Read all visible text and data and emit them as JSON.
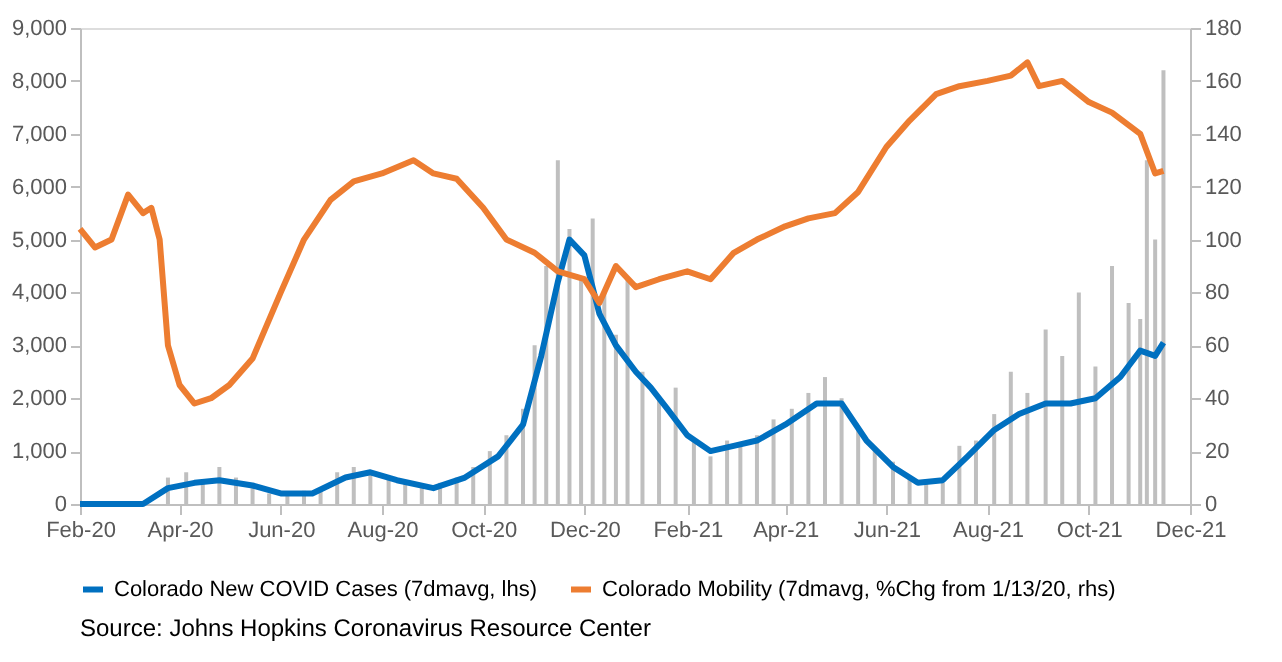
{
  "chart_data": {
    "type": "line",
    "xlim": [
      "2020-02-01",
      "2021-12-01"
    ],
    "xticks": [
      {
        "value": "2020-02-01",
        "label": "Feb-20"
      },
      {
        "value": "2020-04-01",
        "label": "Apr-20"
      },
      {
        "value": "2020-06-01",
        "label": "Jun-20"
      },
      {
        "value": "2020-08-01",
        "label": "Aug-20"
      },
      {
        "value": "2020-10-01",
        "label": "Oct-20"
      },
      {
        "value": "2020-12-01",
        "label": "Dec-20"
      },
      {
        "value": "2021-02-01",
        "label": "Feb-21"
      },
      {
        "value": "2021-04-01",
        "label": "Apr-21"
      },
      {
        "value": "2021-06-01",
        "label": "Jun-21"
      },
      {
        "value": "2021-08-01",
        "label": "Aug-21"
      },
      {
        "value": "2021-10-01",
        "label": "Oct-21"
      },
      {
        "value": "2021-12-01",
        "label": "Dec-21"
      }
    ],
    "ylim": [
      0,
      9000
    ],
    "yticks": [
      0,
      {
        "value": 1000,
        "label": "1,000"
      },
      {
        "value": 2000,
        "label": "2,000"
      },
      {
        "value": 3000,
        "label": "3,000"
      },
      {
        "value": 4000,
        "label": "4,000"
      },
      {
        "value": 5000,
        "label": "5,000"
      },
      {
        "value": 6000,
        "label": "6,000"
      },
      {
        "value": 7000,
        "label": "7,000"
      },
      {
        "value": 8000,
        "label": "8,000"
      },
      {
        "value": 9000,
        "label": "9,000"
      }
    ],
    "y2lim": [
      0,
      180
    ],
    "y2ticks": [
      0,
      20,
      40,
      60,
      80,
      100,
      120,
      140,
      160,
      180
    ],
    "grid": false,
    "legend": "bottom",
    "annotations": [
      "Source: Johns Hopkins Coronavirus Resource Center"
    ],
    "series": [
      {
        "type": "bar",
        "color": "#bfbfbf",
        "x": [
          "2020-03-25",
          "2020-04-05",
          "2020-04-15",
          "2020-04-25",
          "2020-05-05",
          "2020-05-15",
          "2020-05-25",
          "2020-06-05",
          "2020-06-15",
          "2020-06-25",
          "2020-07-05",
          "2020-07-15",
          "2020-07-25",
          "2020-08-05",
          "2020-08-15",
          "2020-08-25",
          "2020-09-05",
          "2020-09-15",
          "2020-09-25",
          "2020-10-05",
          "2020-10-15",
          "2020-10-25",
          "2020-11-01",
          "2020-11-08",
          "2020-11-15",
          "2020-11-22",
          "2020-11-29",
          "2020-12-06",
          "2020-12-13",
          "2020-12-20",
          "2020-12-27",
          "2021-01-05",
          "2021-01-15",
          "2021-01-25",
          "2021-02-05",
          "2021-02-15",
          "2021-02-25",
          "2021-03-05",
          "2021-03-15",
          "2021-03-25",
          "2021-04-05",
          "2021-04-15",
          "2021-04-25",
          "2021-05-05",
          "2021-05-15",
          "2021-05-25",
          "2021-06-05",
          "2021-06-15",
          "2021-06-25",
          "2021-07-05",
          "2021-07-15",
          "2021-07-25",
          "2021-08-05",
          "2021-08-15",
          "2021-08-25",
          "2021-09-05",
          "2021-09-15",
          "2021-09-25",
          "2021-10-05",
          "2021-10-15",
          "2021-10-25",
          "2021-11-01",
          "2021-11-05",
          "2021-11-10",
          "2021-11-15"
        ],
        "values": [
          500,
          600,
          400,
          700,
          500,
          300,
          200,
          200,
          250,
          300,
          600,
          700,
          600,
          500,
          400,
          300,
          400,
          500,
          700,
          1000,
          1300,
          1800,
          3000,
          4500,
          6500,
          5200,
          4300,
          5400,
          4000,
          3200,
          4300,
          2500,
          2000,
          2200,
          1200,
          900,
          1200,
          1100,
          1300,
          1600,
          1800,
          2100,
          2400,
          2000,
          1400,
          1000,
          800,
          500,
          400,
          400,
          1100,
          1200,
          1700,
          2500,
          2100,
          3300,
          2800,
          4000,
          2600,
          4500,
          3800,
          3500,
          6500,
          5000,
          8200
        ]
      },
      {
        "name": "Colorado New COVID Cases (7dmavg, lhs)",
        "color": "#0070c0",
        "x": [
          "2020-02-01",
          "2020-03-10",
          "2020-03-25",
          "2020-04-10",
          "2020-04-25",
          "2020-05-15",
          "2020-06-01",
          "2020-06-20",
          "2020-07-10",
          "2020-07-25",
          "2020-08-10",
          "2020-09-01",
          "2020-09-20",
          "2020-10-10",
          "2020-10-25",
          "2020-11-05",
          "2020-11-15",
          "2020-11-22",
          "2020-12-01",
          "2020-12-10",
          "2020-12-20",
          "2021-01-01",
          "2021-01-10",
          "2021-01-20",
          "2021-02-01",
          "2021-02-15",
          "2021-03-01",
          "2021-03-15",
          "2021-04-01",
          "2021-04-20",
          "2021-05-05",
          "2021-05-20",
          "2021-06-05",
          "2021-06-20",
          "2021-07-05",
          "2021-07-20",
          "2021-08-05",
          "2021-08-20",
          "2021-09-05",
          "2021-09-20",
          "2021-10-05",
          "2021-10-20",
          "2021-11-01",
          "2021-11-10",
          "2021-11-15"
        ],
        "values": [
          0,
          0,
          300,
          400,
          450,
          350,
          200,
          200,
          500,
          600,
          450,
          300,
          500,
          900,
          1500,
          2800,
          4200,
          5000,
          4700,
          3600,
          3000,
          2500,
          2200,
          1800,
          1300,
          1000,
          1100,
          1200,
          1500,
          1900,
          1900,
          1200,
          700,
          400,
          450,
          900,
          1400,
          1700,
          1900,
          1900,
          2000,
          2400,
          2900,
          2800,
          3050
        ]
      },
      {
        "name": "Colorado Mobility (7dmavg, %Chg from 1/13/20, rhs)",
        "color": "#ed7d31",
        "axis": "y2",
        "x": [
          "2020-02-01",
          "2020-02-10",
          "2020-02-20",
          "2020-03-01",
          "2020-03-10",
          "2020-03-15",
          "2020-03-20",
          "2020-03-25",
          "2020-04-01",
          "2020-04-10",
          "2020-04-20",
          "2020-05-01",
          "2020-05-15",
          "2020-06-01",
          "2020-06-15",
          "2020-07-01",
          "2020-07-15",
          "2020-08-01",
          "2020-08-20",
          "2020-09-01",
          "2020-09-15",
          "2020-10-01",
          "2020-10-15",
          "2020-11-01",
          "2020-11-15",
          "2020-12-01",
          "2020-12-10",
          "2020-12-20",
          "2021-01-01",
          "2021-01-15",
          "2021-02-01",
          "2021-02-15",
          "2021-03-01",
          "2021-03-15",
          "2021-04-01",
          "2021-04-15",
          "2021-05-01",
          "2021-05-15",
          "2021-06-01",
          "2021-06-15",
          "2021-07-01",
          "2021-07-15",
          "2021-08-01",
          "2021-08-15",
          "2021-08-25",
          "2021-09-01",
          "2021-09-15",
          "2021-10-01",
          "2021-10-15",
          "2021-11-01",
          "2021-11-10",
          "2021-11-15"
        ],
        "values": [
          104,
          97,
          100,
          117,
          110,
          112,
          100,
          60,
          45,
          38,
          40,
          45,
          55,
          80,
          100,
          115,
          122,
          125,
          130,
          125,
          123,
          112,
          100,
          95,
          88,
          85,
          76,
          90,
          82,
          85,
          88,
          85,
          95,
          100,
          105,
          108,
          110,
          118,
          135,
          145,
          155,
          158,
          160,
          162,
          167,
          158,
          160,
          152,
          148,
          140,
          125,
          126
        ]
      }
    ]
  }
}
